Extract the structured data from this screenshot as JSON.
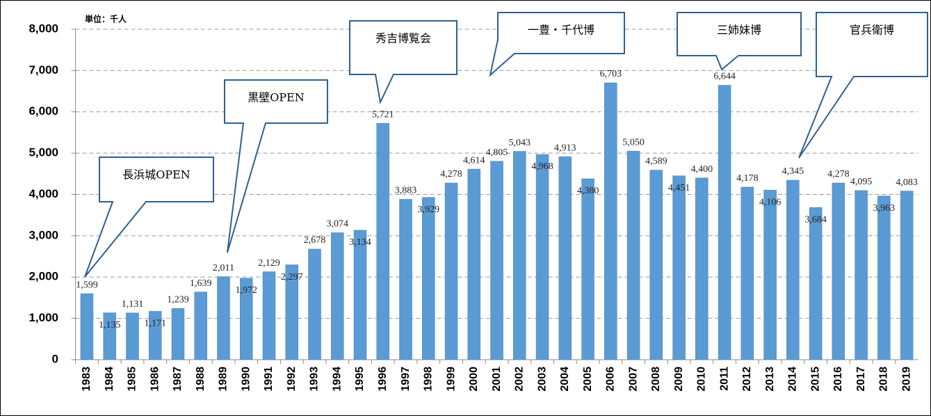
{
  "chart_data": {
    "type": "bar",
    "unit_label": "単位：千人",
    "categories": [
      "1983",
      "1984",
      "1985",
      "1986",
      "1987",
      "1988",
      "1989",
      "1990",
      "1991",
      "1992",
      "1993",
      "1994",
      "1995",
      "1996",
      "1997",
      "1998",
      "1999",
      "2000",
      "2001",
      "2002",
      "2003",
      "2004",
      "2005",
      "2006",
      "2007",
      "2008",
      "2009",
      "2010",
      "2011",
      "2012",
      "2013",
      "2014",
      "2015",
      "2016",
      "2017",
      "2018",
      "2019"
    ],
    "values": [
      1599,
      1135,
      1131,
      1171,
      1239,
      1639,
      2011,
      1972,
      2129,
      2297,
      2678,
      3074,
      3134,
      5721,
      3883,
      3929,
      4278,
      4614,
      4805,
      5043,
      4968,
      4913,
      4380,
      6703,
      5050,
      4589,
      4451,
      4400,
      6644,
      4178,
      4106,
      4345,
      3684,
      4278,
      4095,
      3963,
      4083
    ],
    "value_labels": [
      "1,599",
      "1,135",
      "1,131",
      "1,171",
      "1,239",
      "1,639",
      "2,011",
      "1,972",
      "2,129",
      "2,297",
      "2,678",
      "3,074",
      "3,134",
      "5,721",
      "3,883",
      "3,929",
      "4,278",
      "4,614",
      "4,805",
      "5,043",
      "4,968",
      "4,913",
      "4,380",
      "6,703",
      "5,050",
      "4,589",
      "4,451",
      "4,400",
      "6,644",
      "4,178",
      "4,106",
      "4,345",
      "3,684",
      "4,278",
      "4,095",
      "3,963",
      "4,083"
    ],
    "color": "#5b9bd5",
    "ylim": [
      0,
      8000
    ],
    "yticks": [
      0,
      {
        "value": 1000,
        "label": "1,000"
      },
      {
        "value": 2000,
        "label": "2,000"
      },
      {
        "value": 3000,
        "label": "3,000"
      },
      {
        "value": 4000,
        "label": "4,000"
      },
      {
        "value": 5000,
        "label": "5,000"
      },
      {
        "value": 6000,
        "label": "6,000"
      },
      {
        "value": 7000,
        "label": "7,000"
      },
      {
        "value": 8000,
        "label": "8,000"
      }
    ],
    "grid": true,
    "annotations": [
      "長浜城OPEN",
      "黒壁OPEN",
      "秀吉博覧会",
      "一豊・千代博",
      "三姉妹博",
      "官兵衛博"
    ]
  }
}
